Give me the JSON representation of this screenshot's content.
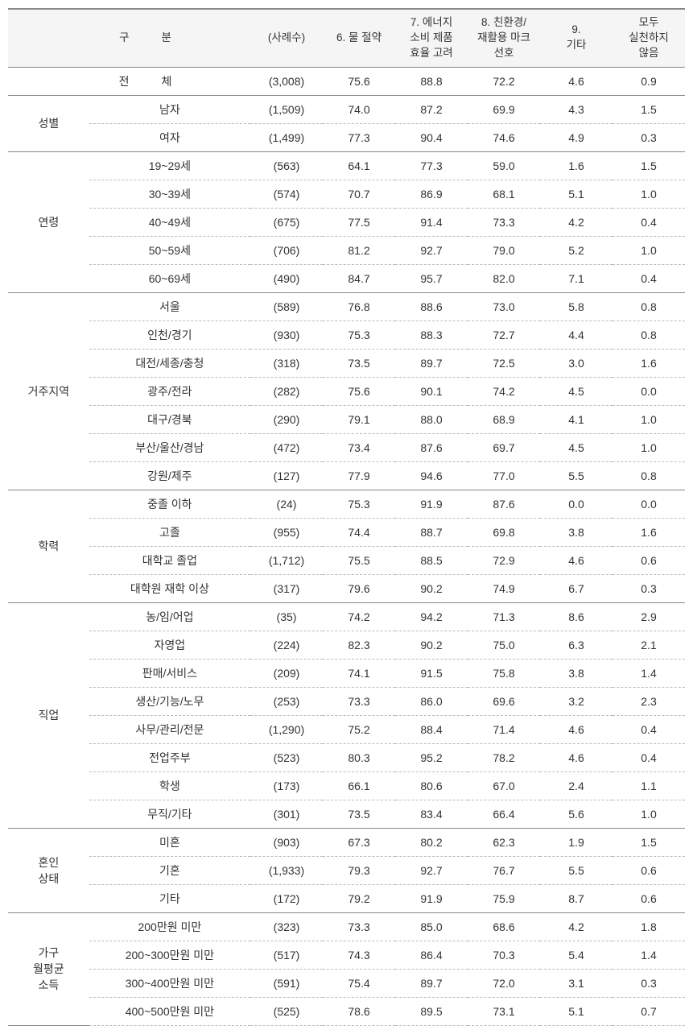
{
  "columns": {
    "c0": "구",
    "c0b": "분",
    "c1": "(사례수)",
    "c2": "6. 물 절약",
    "c3": "7. 에너지\n소비 제품\n효율 고려",
    "c4": "8. 친환경/\n재활용 마크\n선호",
    "c5": "9.\n기타",
    "c6": "모두\n실천하지\n않음"
  },
  "total_label_a": "전",
  "total_label_b": "체",
  "total": {
    "n": "(3,008)",
    "v1": "75.6",
    "v2": "88.8",
    "v3": "72.2",
    "v4": "4.6",
    "v5": "0.9"
  },
  "groups": [
    {
      "label": "성별",
      "rows": [
        {
          "sub": "남자",
          "n": "(1,509)",
          "v1": "74.0",
          "v2": "87.2",
          "v3": "69.9",
          "v4": "4.3",
          "v5": "1.5"
        },
        {
          "sub": "여자",
          "n": "(1,499)",
          "v1": "77.3",
          "v2": "90.4",
          "v3": "74.6",
          "v4": "4.9",
          "v5": "0.3"
        }
      ]
    },
    {
      "label": "연령",
      "rows": [
        {
          "sub": "19~29세",
          "n": "(563)",
          "v1": "64.1",
          "v2": "77.3",
          "v3": "59.0",
          "v4": "1.6",
          "v5": "1.5"
        },
        {
          "sub": "30~39세",
          "n": "(574)",
          "v1": "70.7",
          "v2": "86.9",
          "v3": "68.1",
          "v4": "5.1",
          "v5": "1.0"
        },
        {
          "sub": "40~49세",
          "n": "(675)",
          "v1": "77.5",
          "v2": "91.4",
          "v3": "73.3",
          "v4": "4.2",
          "v5": "0.4"
        },
        {
          "sub": "50~59세",
          "n": "(706)",
          "v1": "81.2",
          "v2": "92.7",
          "v3": "79.0",
          "v4": "5.2",
          "v5": "1.0"
        },
        {
          "sub": "60~69세",
          "n": "(490)",
          "v1": "84.7",
          "v2": "95.7",
          "v3": "82.0",
          "v4": "7.1",
          "v5": "0.4"
        }
      ]
    },
    {
      "label": "거주지역",
      "rows": [
        {
          "sub": "서울",
          "n": "(589)",
          "v1": "76.8",
          "v2": "88.6",
          "v3": "73.0",
          "v4": "5.8",
          "v5": "0.8"
        },
        {
          "sub": "인천/경기",
          "n": "(930)",
          "v1": "75.3",
          "v2": "88.3",
          "v3": "72.7",
          "v4": "4.4",
          "v5": "0.8"
        },
        {
          "sub": "대전/세종/충청",
          "n": "(318)",
          "v1": "73.5",
          "v2": "89.7",
          "v3": "72.5",
          "v4": "3.0",
          "v5": "1.6"
        },
        {
          "sub": "광주/전라",
          "n": "(282)",
          "v1": "75.6",
          "v2": "90.1",
          "v3": "74.2",
          "v4": "4.5",
          "v5": "0.0"
        },
        {
          "sub": "대구/경북",
          "n": "(290)",
          "v1": "79.1",
          "v2": "88.0",
          "v3": "68.9",
          "v4": "4.1",
          "v5": "1.0"
        },
        {
          "sub": "부산/울산/경남",
          "n": "(472)",
          "v1": "73.4",
          "v2": "87.6",
          "v3": "69.7",
          "v4": "4.5",
          "v5": "1.0"
        },
        {
          "sub": "강원/제주",
          "n": "(127)",
          "v1": "77.9",
          "v2": "94.6",
          "v3": "77.0",
          "v4": "5.5",
          "v5": "0.8"
        }
      ]
    },
    {
      "label": "학력",
      "rows": [
        {
          "sub": "중졸 이하",
          "n": "(24)",
          "v1": "75.3",
          "v2": "91.9",
          "v3": "87.6",
          "v4": "0.0",
          "v5": "0.0"
        },
        {
          "sub": "고졸",
          "n": "(955)",
          "v1": "74.4",
          "v2": "88.7",
          "v3": "69.8",
          "v4": "3.8",
          "v5": "1.6"
        },
        {
          "sub": "대학교 졸업",
          "n": "(1,712)",
          "v1": "75.5",
          "v2": "88.5",
          "v3": "72.9",
          "v4": "4.6",
          "v5": "0.6"
        },
        {
          "sub": "대학원 재학 이상",
          "n": "(317)",
          "v1": "79.6",
          "v2": "90.2",
          "v3": "74.9",
          "v4": "6.7",
          "v5": "0.3"
        }
      ]
    },
    {
      "label": "직업",
      "rows": [
        {
          "sub": "농/임/어업",
          "n": "(35)",
          "v1": "74.2",
          "v2": "94.2",
          "v3": "71.3",
          "v4": "8.6",
          "v5": "2.9"
        },
        {
          "sub": "자영업",
          "n": "(224)",
          "v1": "82.3",
          "v2": "90.2",
          "v3": "75.0",
          "v4": "6.3",
          "v5": "2.1"
        },
        {
          "sub": "판매/서비스",
          "n": "(209)",
          "v1": "74.1",
          "v2": "91.5",
          "v3": "75.8",
          "v4": "3.8",
          "v5": "1.4"
        },
        {
          "sub": "생산/기능/노무",
          "n": "(253)",
          "v1": "73.3",
          "v2": "86.0",
          "v3": "69.6",
          "v4": "3.2",
          "v5": "2.3"
        },
        {
          "sub": "사무/관리/전문",
          "n": "(1,290)",
          "v1": "75.2",
          "v2": "88.4",
          "v3": "71.4",
          "v4": "4.6",
          "v5": "0.4"
        },
        {
          "sub": "전업주부",
          "n": "(523)",
          "v1": "80.3",
          "v2": "95.2",
          "v3": "78.2",
          "v4": "4.6",
          "v5": "0.4"
        },
        {
          "sub": "학생",
          "n": "(173)",
          "v1": "66.1",
          "v2": "80.6",
          "v3": "67.0",
          "v4": "2.4",
          "v5": "1.1"
        },
        {
          "sub": "무직/기타",
          "n": "(301)",
          "v1": "73.5",
          "v2": "83.4",
          "v3": "66.4",
          "v4": "5.6",
          "v5": "1.0"
        }
      ]
    },
    {
      "label": "혼인\n상태",
      "rows": [
        {
          "sub": "미혼",
          "n": "(903)",
          "v1": "67.3",
          "v2": "80.2",
          "v3": "62.3",
          "v4": "1.9",
          "v5": "1.5"
        },
        {
          "sub": "기혼",
          "n": "(1,933)",
          "v1": "79.3",
          "v2": "92.7",
          "v3": "76.7",
          "v4": "5.5",
          "v5": "0.6"
        },
        {
          "sub": "기타",
          "n": "(172)",
          "v1": "79.2",
          "v2": "91.9",
          "v3": "75.9",
          "v4": "8.7",
          "v5": "0.6"
        }
      ]
    },
    {
      "label": "가구\n월평균\n소득",
      "lastOpen": true,
      "rows": [
        {
          "sub": "200만원 미만",
          "n": "(323)",
          "v1": "73.3",
          "v2": "85.0",
          "v3": "68.6",
          "v4": "4.2",
          "v5": "1.8"
        },
        {
          "sub": "200~300만원 미만",
          "n": "(517)",
          "v1": "74.3",
          "v2": "86.4",
          "v3": "70.3",
          "v4": "5.4",
          "v5": "1.4"
        },
        {
          "sub": "300~400만원 미만",
          "n": "(591)",
          "v1": "75.4",
          "v2": "89.7",
          "v3": "72.0",
          "v4": "3.1",
          "v5": "0.3"
        },
        {
          "sub": "400~500만원 미만",
          "n": "(525)",
          "v1": "78.6",
          "v2": "89.5",
          "v3": "73.1",
          "v4": "5.1",
          "v5": "0.7"
        }
      ]
    }
  ]
}
